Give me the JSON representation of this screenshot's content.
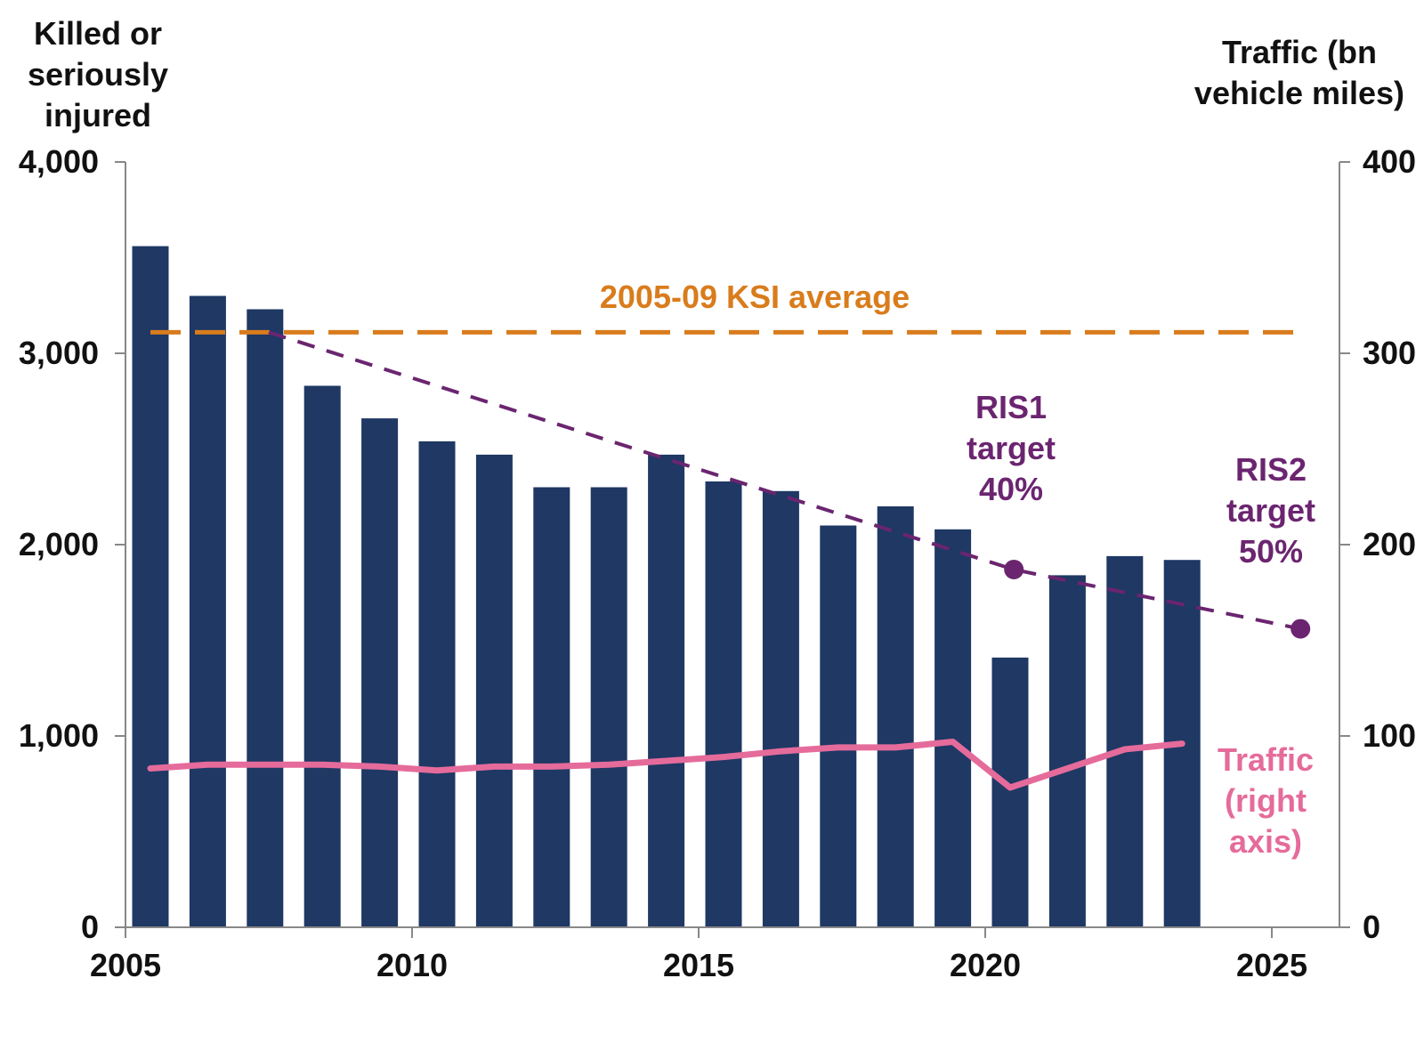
{
  "chart_data": {
    "type": "bar",
    "left_axis": {
      "label_lines": [
        "Killed  or",
        "seriously",
        "injured"
      ],
      "ylim": [
        0,
        4000
      ],
      "ticks": [
        0,
        1000,
        2000,
        3000,
        4000
      ],
      "tick_labels": [
        "0",
        "1,000",
        "2,000",
        "3,000",
        "4,000"
      ]
    },
    "right_axis": {
      "label_lines": [
        "Traffic (bn",
        "vehicle miles)"
      ],
      "ylim": [
        0,
        400
      ],
      "ticks": [
        0,
        100,
        200,
        300,
        400
      ],
      "tick_labels": [
        "0",
        "100",
        "200",
        "300",
        "400"
      ]
    },
    "x_axis": {
      "xlim": [
        2005,
        2025
      ],
      "ticks": [
        2005,
        2010,
        2015,
        2020,
        2025
      ],
      "tick_labels": [
        "2005",
        "2010",
        "2015",
        "2020",
        "2025"
      ]
    },
    "bars": {
      "x": [
        2005,
        2006,
        2007,
        2008,
        2009,
        2010,
        2011,
        2012,
        2013,
        2014,
        2015,
        2016,
        2017,
        2018,
        2019,
        2020,
        2021,
        2022,
        2023
      ],
      "values": [
        3560,
        3300,
        3230,
        2830,
        2660,
        2540,
        2470,
        2300,
        2300,
        2470,
        2330,
        2280,
        2100,
        2200,
        2080,
        1410,
        1840,
        1940,
        1920
      ],
      "color": "#1f3864"
    },
    "traffic": {
      "x": [
        2005,
        2006,
        2007,
        2008,
        2009,
        2010,
        2011,
        2012,
        2013,
        2014,
        2015,
        2016,
        2017,
        2018,
        2019,
        2020,
        2021,
        2022,
        2023
      ],
      "values": [
        83,
        85,
        85,
        85,
        84,
        82,
        84,
        84,
        85,
        87,
        89,
        92,
        94,
        94,
        97,
        73,
        83,
        93,
        96
      ],
      "color": "#e56b9b",
      "label_lines": [
        "Traffic",
        "(right",
        "axis)"
      ]
    },
    "ksi_average": {
      "value": 3110,
      "x_range": [
        2005,
        2025
      ],
      "label": "2005-09 KSI average",
      "color": "#d97c1c"
    },
    "target_line": {
      "points": [
        [
          2007.5,
          3110
        ],
        [
          2020.5,
          1870
        ],
        [
          2025.5,
          1560
        ]
      ],
      "color": "#6b2570"
    },
    "targets": [
      {
        "x": 2020.5,
        "value": 1870,
        "label_lines": [
          "RIS1",
          "target",
          "40%"
        ]
      },
      {
        "x": 2025.5,
        "value": 1560,
        "label_lines": [
          "RIS2",
          "target",
          "50%"
        ]
      }
    ],
    "grid": false
  }
}
